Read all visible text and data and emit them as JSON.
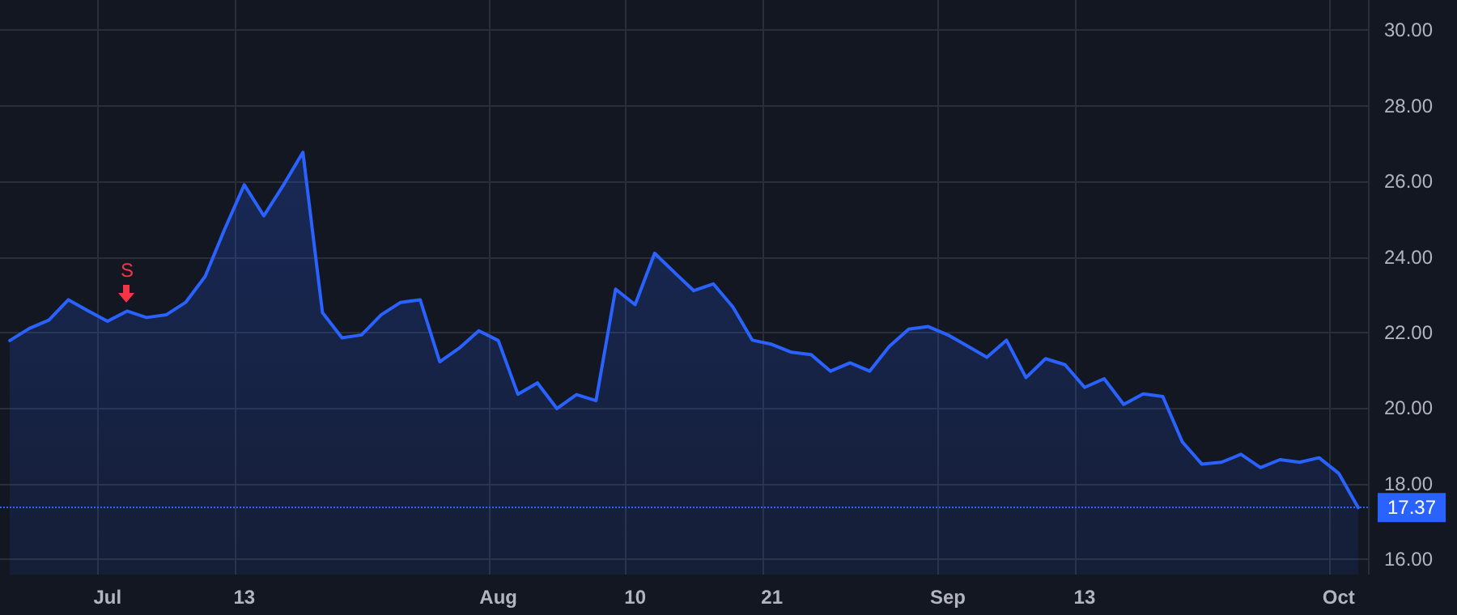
{
  "chart_data": {
    "type": "area",
    "categories": [
      null,
      null,
      null,
      null,
      null,
      "Jul",
      null,
      null,
      null,
      null,
      null,
      null,
      "13",
      null,
      null,
      null,
      null,
      null,
      null,
      null,
      null,
      null,
      null,
      null,
      null,
      "Aug",
      null,
      null,
      null,
      null,
      null,
      null,
      "10",
      null,
      null,
      null,
      null,
      null,
      null,
      "21",
      null,
      null,
      null,
      null,
      null,
      null,
      null,
      null,
      "Sep",
      null,
      null,
      null,
      null,
      null,
      null,
      "13",
      null,
      null,
      null,
      null,
      null,
      null,
      null,
      null,
      null,
      null,
      null,
      null,
      "Oct",
      null
    ],
    "series": [
      {
        "color": "#2962ff",
        "values": [
          21.79,
          22.11,
          22.33,
          22.87,
          22.58,
          22.3,
          22.57,
          22.4,
          22.47,
          22.8,
          23.49,
          24.74,
          25.91,
          25.09,
          25.9,
          26.77,
          22.53,
          21.86,
          21.94,
          22.47,
          22.8,
          22.87,
          21.23,
          21.59,
          22.05,
          21.79,
          20.37,
          20.67,
          19.99,
          20.36,
          20.2,
          23.15,
          22.74,
          24.1,
          23.6,
          23.11,
          23.29,
          22.68,
          21.8,
          21.69,
          21.48,
          21.42,
          20.98,
          21.2,
          20.98,
          21.63,
          22.09,
          22.16,
          21.94,
          21.65,
          21.35,
          21.8,
          20.81,
          21.31,
          21.15,
          20.55,
          20.78,
          20.1,
          20.38,
          20.31,
          19.11,
          18.52,
          18.57,
          18.78,
          18.43,
          18.64,
          18.57,
          18.69,
          18.28,
          17.37
        ]
      }
    ],
    "ylim": [
      15.6,
      30.8
    ],
    "yticks": [
      {
        "value": 16,
        "label": "16.00"
      },
      {
        "value": 18,
        "label": "18.00"
      },
      {
        "value": 20,
        "label": "20.00"
      },
      {
        "value": 22,
        "label": "22.00"
      },
      {
        "value": 24,
        "label": "24.00"
      },
      {
        "value": 26,
        "label": "26.00"
      },
      {
        "value": 28,
        "label": "28.00"
      },
      {
        "value": 30,
        "label": "30.00"
      }
    ],
    "grid": true,
    "marker": "none",
    "line_style": "solid",
    "ref_lines": [
      {
        "axis": "y",
        "value": 17.37,
        "label": "17.37",
        "color": "#2962ff",
        "line_style": "dotted"
      }
    ],
    "annotations": [
      {
        "text": "S",
        "y": 22.57
      }
    ]
  }
}
